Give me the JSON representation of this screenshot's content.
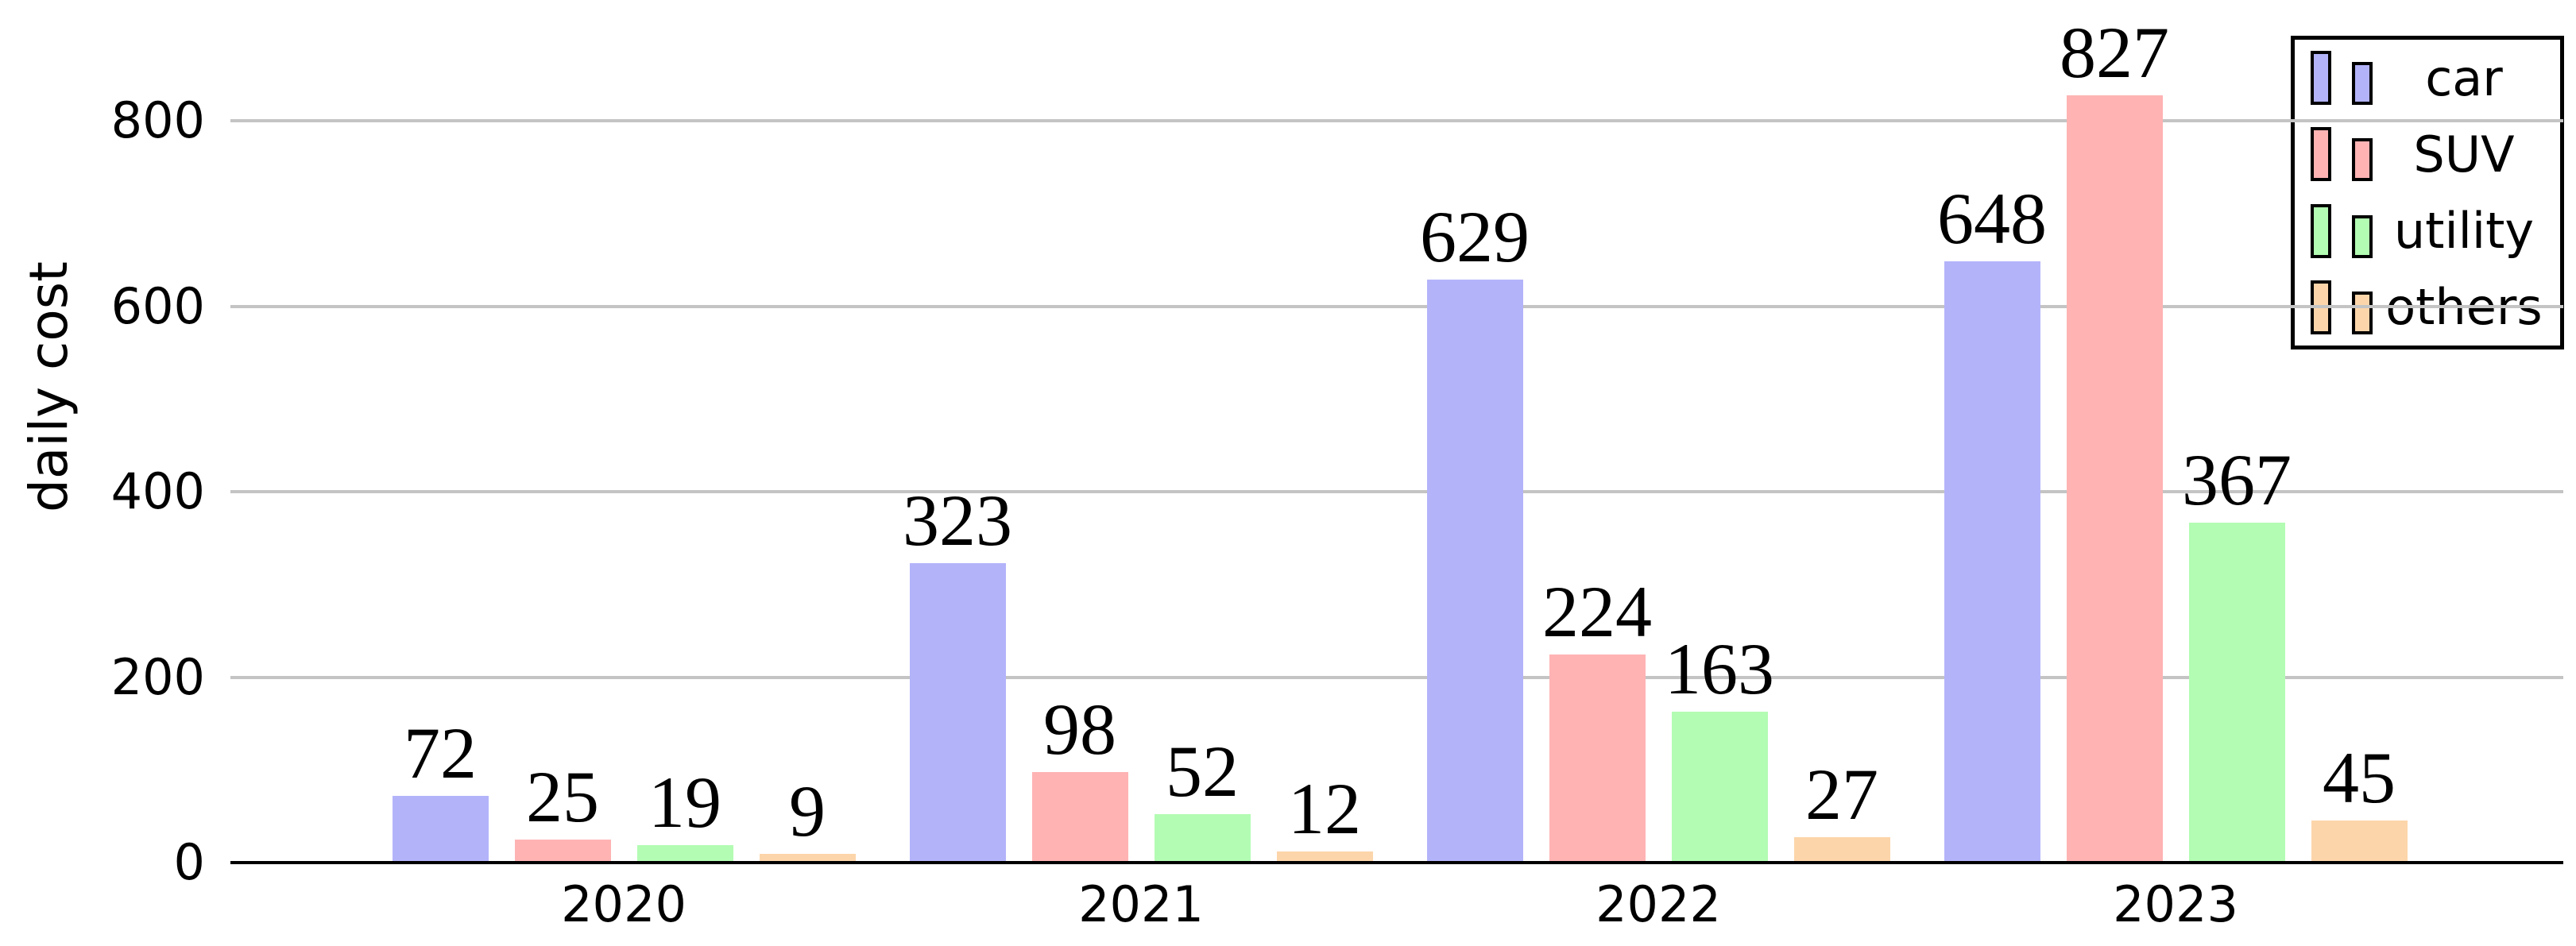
{
  "chart_data": {
    "type": "bar",
    "title": "",
    "categories": [
      "2020",
      "2021",
      "2022",
      "2023"
    ],
    "series": [
      {
        "name": "car",
        "color": "#b3b3fa",
        "values": [
          72,
          323,
          629,
          648
        ]
      },
      {
        "name": "SUV",
        "color": "#ffb3b3",
        "values": [
          25,
          98,
          224,
          827
        ]
      },
      {
        "name": "utility",
        "color": "#b3fcb3",
        "values": [
          19,
          52,
          163,
          367
        ]
      },
      {
        "name": "others",
        "color": "#fcd5aa",
        "values": [
          9,
          12,
          27,
          45
        ]
      }
    ],
    "xlabel": "",
    "ylabel": "daily cost",
    "ytick_labels": [
      "0",
      "200",
      "400",
      "600",
      "800"
    ],
    "yticks": [
      0,
      200,
      400,
      600,
      800
    ],
    "ylim": [
      0,
      930
    ],
    "grid": "horizontal",
    "grid_color": "#c4c4c4",
    "axis_color": "#000000",
    "background_color": "#ffffff",
    "legend_position": "top-right",
    "legend_labels": [
      "car",
      "SUV",
      "utility",
      "others"
    ],
    "bar_value_labels": true
  }
}
